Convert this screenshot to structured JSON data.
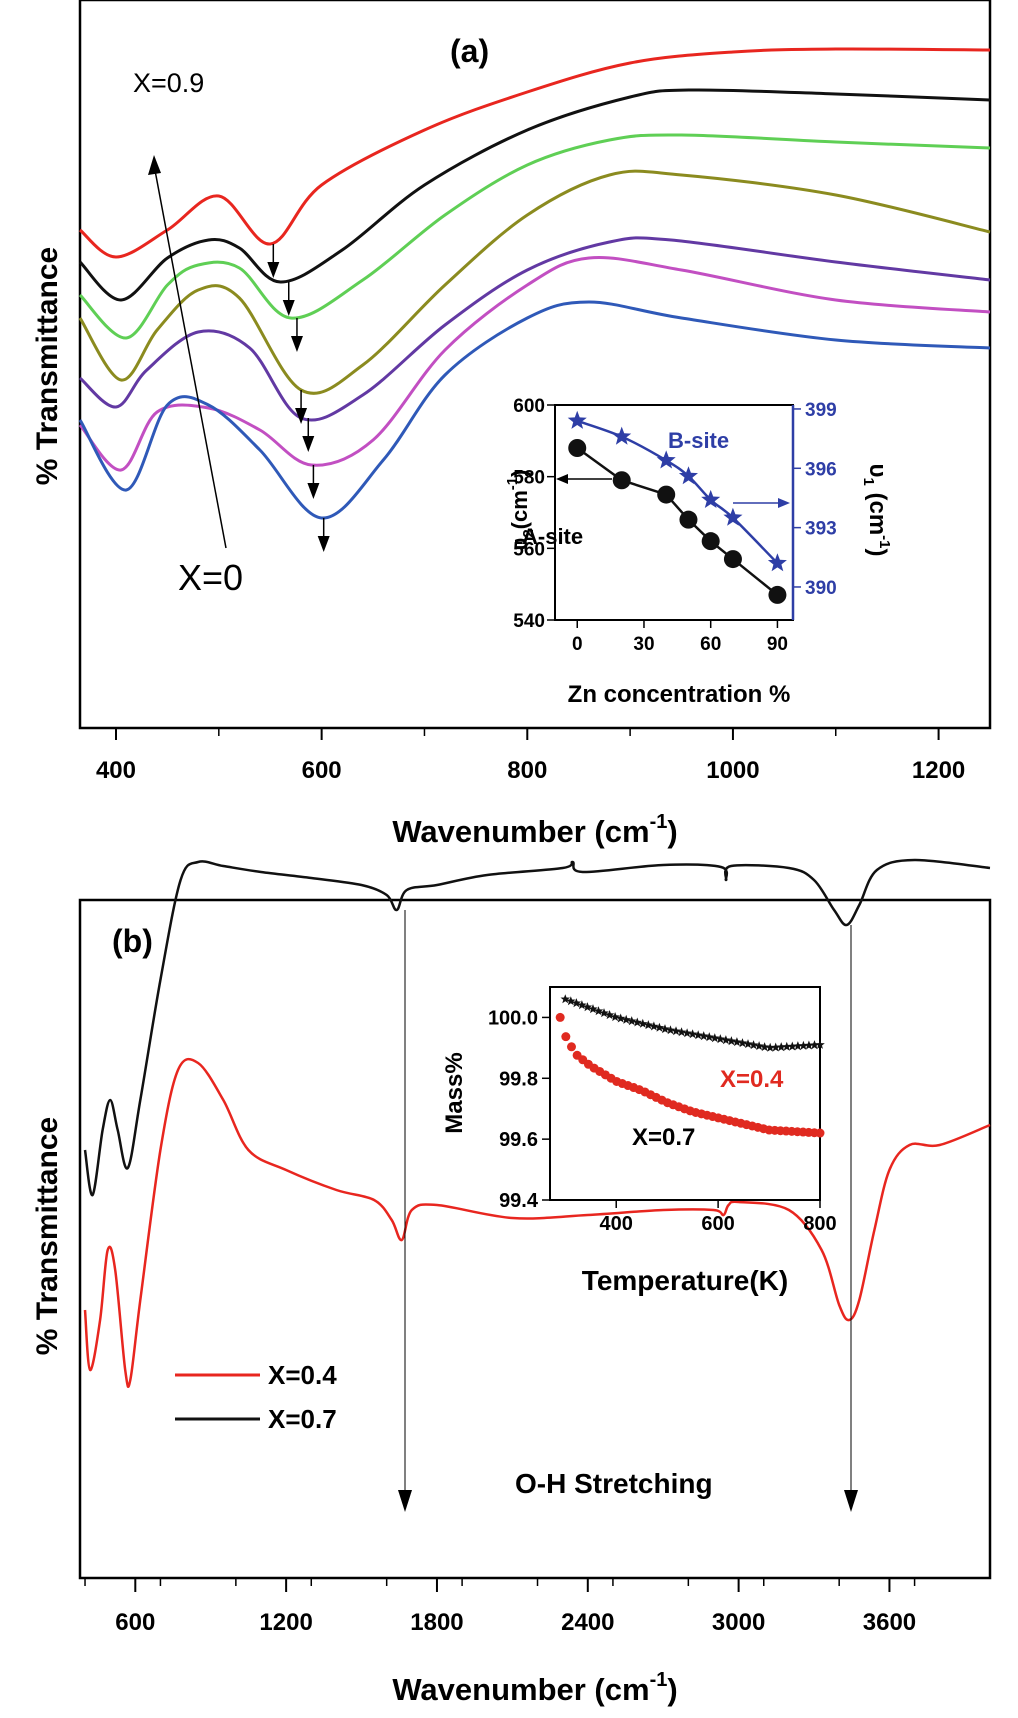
{
  "chart_data": [
    {
      "panel_label": "(a)",
      "type": "line",
      "xlabel": "Wavenumber (cm",
      "xlabel_sup": "-1",
      "xlabel_close": ")",
      "ylabel": "% Transmittance",
      "xlim": [
        365,
        1250
      ],
      "xticks": [
        400,
        600,
        800,
        1000,
        1200
      ],
      "annotations": {
        "top": "X=0.9",
        "bottom": "X=0"
      },
      "series": [
        {
          "color": "#e8261f",
          "points": [
            [
              365,
              230
            ],
            [
              400,
              257
            ],
            [
              450,
              230
            ],
            [
              500,
              196
            ],
            [
              550,
              244
            ],
            [
              600,
              185
            ],
            [
              700,
              130
            ],
            [
              800,
              92
            ],
            [
              900,
              63
            ],
            [
              1000,
              52
            ],
            [
              1100,
              49
            ],
            [
              1250,
              50
            ]
          ]
        },
        {
          "color": "#111111",
          "points": [
            [
              365,
              262
            ],
            [
              405,
              300
            ],
            [
              450,
              258
            ],
            [
              490,
              240
            ],
            [
              520,
              248
            ],
            [
              560,
              282
            ],
            [
              620,
              250
            ],
            [
              700,
              185
            ],
            [
              800,
              130
            ],
            [
              900,
              97
            ],
            [
              960,
              90
            ],
            [
              1100,
              94
            ],
            [
              1250,
              100
            ]
          ]
        },
        {
          "color": "#5fcf55",
          "points": [
            [
              365,
              295
            ],
            [
              410,
              338
            ],
            [
              450,
              285
            ],
            [
              480,
              265
            ],
            [
              520,
              268
            ],
            [
              570,
              318
            ],
            [
              640,
              280
            ],
            [
              720,
              215
            ],
            [
              800,
              165
            ],
            [
              880,
              140
            ],
            [
              950,
              135
            ],
            [
              1100,
              142
            ],
            [
              1250,
              148
            ]
          ]
        },
        {
          "color": "#8b8b1f",
          "points": [
            [
              365,
              318
            ],
            [
              405,
              380
            ],
            [
              440,
              330
            ],
            [
              480,
              290
            ],
            [
              520,
              298
            ],
            [
              580,
              390
            ],
            [
              640,
              365
            ],
            [
              720,
              285
            ],
            [
              800,
              215
            ],
            [
              880,
              175
            ],
            [
              950,
              175
            ],
            [
              1100,
              195
            ],
            [
              1250,
              232
            ]
          ]
        },
        {
          "color": "#6239a3",
          "points": [
            [
              365,
              378
            ],
            [
              400,
              407
            ],
            [
              430,
              370
            ],
            [
              480,
              332
            ],
            [
              530,
              348
            ],
            [
              580,
              418
            ],
            [
              640,
              395
            ],
            [
              720,
              325
            ],
            [
              800,
              270
            ],
            [
              880,
              242
            ],
            [
              940,
              240
            ],
            [
              1100,
              262
            ],
            [
              1250,
              280
            ]
          ]
        },
        {
          "color": "#c24fc2",
          "points": [
            [
              365,
              425
            ],
            [
              405,
              470
            ],
            [
              440,
              412
            ],
            [
              490,
              408
            ],
            [
              540,
              430
            ],
            [
              590,
              465
            ],
            [
              650,
              440
            ],
            [
              720,
              350
            ],
            [
              800,
              285
            ],
            [
              860,
              258
            ],
            [
              950,
              270
            ],
            [
              1100,
              300
            ],
            [
              1250,
              312
            ]
          ]
        },
        {
          "color": "#2f59b8",
          "points": [
            [
              365,
              420
            ],
            [
              410,
              490
            ],
            [
              450,
              405
            ],
            [
              490,
              405
            ],
            [
              540,
              450
            ],
            [
              600,
              518
            ],
            [
              660,
              460
            ],
            [
              720,
              375
            ],
            [
              800,
              318
            ],
            [
              860,
              302
            ],
            [
              950,
              318
            ],
            [
              1100,
              340
            ],
            [
              1250,
              348
            ]
          ]
        }
      ],
      "inset": {
        "xlabel": "Zn concentration %",
        "ylabel_left": "υ",
        "ylabel_left_sub": "2",
        "ylabel_left_unit": "(cm",
        "ylabel_left_sup": "-1",
        "ylabel_left_close": ")",
        "ylabel_right": "υ",
        "ylabel_right_sub": "1",
        "ylabel_right_unit": " (cm",
        "ylabel_right_sup": "-1",
        "ylabel_right_close": ")",
        "xlim": [
          -10,
          97
        ],
        "xticks": [
          0,
          30,
          60,
          90
        ],
        "ylim_left": [
          540,
          600
        ],
        "yticks_left": [
          540,
          560,
          580,
          600
        ],
        "ylim_right": [
          388.33,
          399.2
        ],
        "yticks_right": [
          390,
          393,
          396,
          399
        ],
        "label_a": "A-site",
        "label_b": "B-site",
        "series_a": {
          "color": "#111111",
          "x": [
            0,
            20,
            40,
            50,
            60,
            70,
            90
          ],
          "y": [
            588,
            579,
            575,
            568,
            562,
            557,
            547
          ]
        },
        "series_b": {
          "color": "#2e3ea6",
          "x": [
            0,
            20,
            40,
            50,
            60,
            70,
            90
          ],
          "y": [
            398.4,
            397.6,
            396.4,
            395.6,
            394.4,
            393.5,
            391.2
          ]
        }
      }
    },
    {
      "panel_label": "(b)",
      "type": "line",
      "xlabel": "Wavenumber (cm",
      "xlabel_sup": "-1",
      "xlabel_close": ")",
      "ylabel": "% Transmittance",
      "xlim": [
        380,
        4000
      ],
      "xticks": [
        600,
        1200,
        1800,
        2400,
        3000,
        3600
      ],
      "annotation": "O-H Stretching",
      "legend": [
        {
          "name": "X=0.4",
          "color": "#e8261f"
        },
        {
          "name": "X=0.7",
          "color": "#111111"
        }
      ],
      "series": [
        {
          "name": "X=0.7",
          "color": "#111111",
          "points": [
            [
              400,
              1150
            ],
            [
              430,
              1195
            ],
            [
              470,
              1130
            ],
            [
              500,
              1100
            ],
            [
              530,
              1130
            ],
            [
              570,
              1168
            ],
            [
              620,
              1100
            ],
            [
              700,
              980
            ],
            [
              780,
              880
            ],
            [
              850,
              862
            ],
            [
              950,
              866
            ],
            [
              1100,
              872
            ],
            [
              1300,
              878
            ],
            [
              1500,
              885
            ],
            [
              1600,
              895
            ],
            [
              1640,
              910
            ],
            [
              1680,
              890
            ],
            [
              1800,
              885
            ],
            [
              2000,
              875
            ],
            [
              2300,
              868
            ],
            [
              2340,
              862
            ],
            [
              2380,
              872
            ],
            [
              2700,
              865
            ],
            [
              2930,
              867
            ],
            [
              2950,
              880
            ],
            [
              2970,
              866
            ],
            [
              3200,
              868
            ],
            [
              3300,
              880
            ],
            [
              3380,
              910
            ],
            [
              3430,
              925
            ],
            [
              3480,
              905
            ],
            [
              3550,
              870
            ],
            [
              3700,
              860
            ],
            [
              4000,
              868
            ]
          ]
        },
        {
          "name": "X=0.4",
          "color": "#e8261f",
          "points": [
            [
              400,
              1310
            ],
            [
              420,
              1370
            ],
            [
              460,
              1320
            ],
            [
              490,
              1250
            ],
            [
              520,
              1270
            ],
            [
              560,
              1370
            ],
            [
              580,
              1380
            ],
            [
              620,
              1300
            ],
            [
              700,
              1150
            ],
            [
              770,
              1070
            ],
            [
              850,
              1063
            ],
            [
              950,
              1100
            ],
            [
              1050,
              1150
            ],
            [
              1200,
              1170
            ],
            [
              1400,
              1190
            ],
            [
              1550,
              1200
            ],
            [
              1620,
              1220
            ],
            [
              1660,
              1240
            ],
            [
              1700,
              1210
            ],
            [
              1800,
              1205
            ],
            [
              2100,
              1218
            ],
            [
              2400,
              1215
            ],
            [
              2700,
              1210
            ],
            [
              2900,
              1210
            ],
            [
              2940,
              1215
            ],
            [
              2960,
              1205
            ],
            [
              3000,
              1202
            ],
            [
              3200,
              1210
            ],
            [
              3330,
              1250
            ],
            [
              3400,
              1305
            ],
            [
              3440,
              1320
            ],
            [
              3480,
              1300
            ],
            [
              3540,
              1230
            ],
            [
              3600,
              1170
            ],
            [
              3680,
              1145
            ],
            [
              3800,
              1145
            ],
            [
              4000,
              1125
            ]
          ]
        }
      ],
      "inset": {
        "xlabel": "Temperature(K)",
        "ylabel": "Mass%",
        "xlim": [
          270,
          800
        ],
        "xticks": [
          400,
          600,
          800
        ],
        "ylim": [
          99.4,
          100.1
        ],
        "yticks": [
          99.4,
          99.6,
          99.8,
          100.0
        ],
        "series": [
          {
            "name": "X=0.7",
            "color": "#111111",
            "marker": "star",
            "points": [
              [
                300,
                100.06
              ],
              [
                350,
                100.03
              ],
              [
                400,
                100.0
              ],
              [
                500,
                99.96
              ],
              [
                600,
                99.93
              ],
              [
                700,
                99.9
              ],
              [
                800,
                99.91
              ]
            ]
          },
          {
            "name": "X=0.4",
            "color": "#e02a20",
            "marker": "circle",
            "points": [
              [
                290,
                100.0
              ],
              [
                300,
                99.94
              ],
              [
                320,
                99.88
              ],
              [
                350,
                99.84
              ],
              [
                400,
                99.79
              ],
              [
                450,
                99.76
              ],
              [
                500,
                99.72
              ],
              [
                550,
                99.69
              ],
              [
                600,
                99.67
              ],
              [
                650,
                99.65
              ],
              [
                700,
                99.63
              ],
              [
                800,
                99.62
              ]
            ]
          }
        ],
        "label_x04": "X=0.4",
        "label_x07": "X=0.7"
      }
    }
  ]
}
